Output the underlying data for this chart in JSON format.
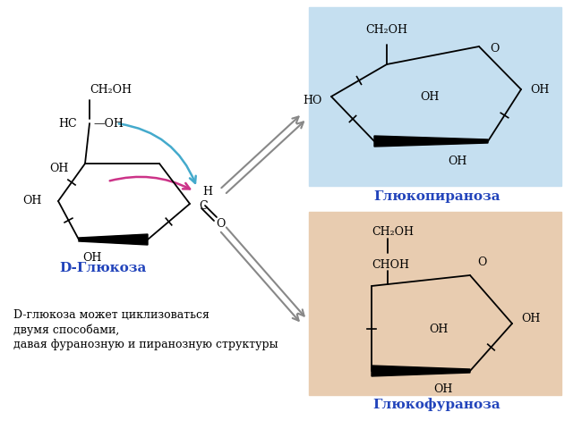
{
  "bg_color": "#ffffff",
  "pyranose_box_color": "#c5dff0",
  "furanose_box_color": "#e8ccb0",
  "label_color": "#2244bb",
  "cyan_arrow_color": "#44aacc",
  "pink_arrow_color": "#cc3388",
  "arrow_color": "#888888",
  "title_text": "D-Глюкоза",
  "pyranose_label": "Глюкопираноза",
  "furanose_label": "Глюкофураноза",
  "bottom_text_lines": [
    "D-глюкоза может циклизоваться",
    "двумя способами,",
    "давая фуранозную и пиранозную структуры"
  ]
}
